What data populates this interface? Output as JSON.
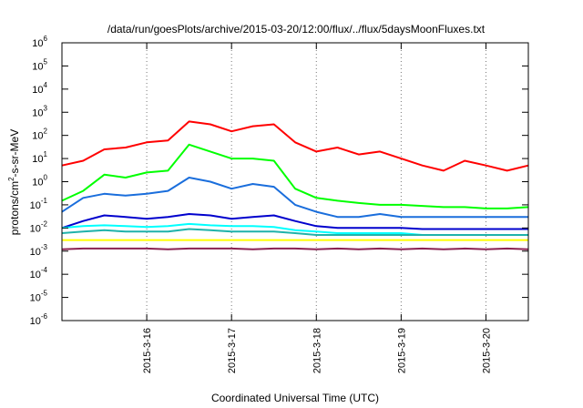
{
  "chart_data": {
    "type": "line",
    "title": "/data/run/goesPlots/archive/2015-03-20/12:00/flux/../flux/5daysMoonFluxes.txt",
    "xlabel": "Coordinated Universal Time (UTC)",
    "ylabel": "protons/cm2-s-sr-MeV",
    "ylabel_parts": {
      "pre": "protons/cm",
      "sup": "2",
      "post": "-s-sr-MeV"
    },
    "yscale": "log",
    "ylim": [
      1e-06,
      1000000.0
    ],
    "xlim": [
      "2015-03-15 00:00",
      "2015-03-20 12:00"
    ],
    "grid_x": true,
    "grid_y": false,
    "y_ticks": [
      {
        "base": "10",
        "exp": "-6",
        "value": 1e-06
      },
      {
        "base": "10",
        "exp": "-5",
        "value": 1e-05
      },
      {
        "base": "10",
        "exp": "-4",
        "value": 0.0001
      },
      {
        "base": "10",
        "exp": "-3",
        "value": 0.001
      },
      {
        "base": "10",
        "exp": "-2",
        "value": 0.01
      },
      {
        "base": "10",
        "exp": "-1",
        "value": 0.1
      },
      {
        "base": "10",
        "exp": "0",
        "value": 1
      },
      {
        "base": "10",
        "exp": "1",
        "value": 10
      },
      {
        "base": "10",
        "exp": "2",
        "value": 100
      },
      {
        "base": "10",
        "exp": "3",
        "value": 1000
      },
      {
        "base": "10",
        "exp": "4",
        "value": 10000
      },
      {
        "base": "10",
        "exp": "5",
        "value": 100000
      },
      {
        "base": "10",
        "exp": "6",
        "value": 1000000
      }
    ],
    "x_ticks": [
      {
        "label": "2015-3-16",
        "date": "2015-03-16 00:00"
      },
      {
        "label": "2015-3-17",
        "date": "2015-03-17 00:00"
      },
      {
        "label": "2015-3-18",
        "date": "2015-03-18 00:00"
      },
      {
        "label": "2015-3-19",
        "date": "2015-03-19 00:00"
      },
      {
        "label": "2015-3-20",
        "date": "2015-03-20 00:00"
      }
    ],
    "x": [
      "2015-03-15 00:00",
      "2015-03-15 06:00",
      "2015-03-15 12:00",
      "2015-03-15 18:00",
      "2015-03-16 00:00",
      "2015-03-16 06:00",
      "2015-03-16 12:00",
      "2015-03-16 18:00",
      "2015-03-17 00:00",
      "2015-03-17 06:00",
      "2015-03-17 12:00",
      "2015-03-17 18:00",
      "2015-03-18 00:00",
      "2015-03-18 06:00",
      "2015-03-18 12:00",
      "2015-03-18 18:00",
      "2015-03-19 00:00",
      "2015-03-19 06:00",
      "2015-03-19 12:00",
      "2015-03-19 18:00",
      "2015-03-20 00:00",
      "2015-03-20 06:00",
      "2015-03-20 12:00"
    ],
    "series": [
      {
        "color": "#ff0000",
        "values": [
          5,
          8,
          25,
          30,
          50,
          60,
          400,
          300,
          150,
          250,
          300,
          50,
          20,
          30,
          15,
          20,
          10,
          5,
          3,
          8,
          5,
          3,
          5
        ]
      },
      {
        "color": "#00ff00",
        "values": [
          0.15,
          0.4,
          2,
          1.5,
          2.5,
          3,
          40,
          20,
          10,
          10,
          8,
          0.5,
          0.2,
          0.15,
          0.12,
          0.1,
          0.1,
          0.09,
          0.08,
          0.08,
          0.07,
          0.07,
          0.08
        ]
      },
      {
        "color": "#1a6edc",
        "values": [
          0.05,
          0.2,
          0.3,
          0.25,
          0.3,
          0.4,
          1.5,
          1,
          0.5,
          0.8,
          0.6,
          0.1,
          0.05,
          0.03,
          0.03,
          0.04,
          0.03,
          0.03,
          0.03,
          0.03,
          0.03,
          0.03,
          0.03
        ]
      },
      {
        "color": "#0000cd",
        "values": [
          0.01,
          0.02,
          0.035,
          0.03,
          0.025,
          0.03,
          0.04,
          0.035,
          0.025,
          0.03,
          0.035,
          0.02,
          0.012,
          0.01,
          0.01,
          0.01,
          0.01,
          0.009,
          0.009,
          0.009,
          0.009,
          0.009,
          0.009
        ]
      },
      {
        "color": "#00ffff",
        "values": [
          0.01,
          0.012,
          0.013,
          0.012,
          0.011,
          0.012,
          0.015,
          0.013,
          0.012,
          0.012,
          0.011,
          0.008,
          0.007,
          0.006,
          0.006,
          0.006,
          0.006,
          0.005,
          0.005,
          0.005,
          0.005,
          0.005,
          0.005
        ]
      },
      {
        "color": "#20b2aa",
        "values": [
          0.006,
          0.007,
          0.008,
          0.007,
          0.007,
          0.007,
          0.009,
          0.008,
          0.007,
          0.007,
          0.007,
          0.006,
          0.005,
          0.005,
          0.005,
          0.005,
          0.005,
          0.005,
          0.005,
          0.005,
          0.005,
          0.005,
          0.005
        ]
      },
      {
        "color": "#ffff00",
        "values": [
          0.003,
          0.003,
          0.003,
          0.003,
          0.003,
          0.003,
          0.003,
          0.003,
          0.003,
          0.003,
          0.003,
          0.003,
          0.003,
          0.003,
          0.003,
          0.003,
          0.003,
          0.003,
          0.003,
          0.003,
          0.003,
          0.003,
          0.003
        ]
      },
      {
        "color": "#8b2252",
        "values": [
          0.0012,
          0.0013,
          0.0013,
          0.0013,
          0.0013,
          0.0012,
          0.0013,
          0.0013,
          0.0013,
          0.0012,
          0.0013,
          0.0013,
          0.0012,
          0.0013,
          0.0012,
          0.0013,
          0.0012,
          0.0013,
          0.0012,
          0.0013,
          0.0012,
          0.0013,
          0.0012
        ]
      }
    ]
  }
}
